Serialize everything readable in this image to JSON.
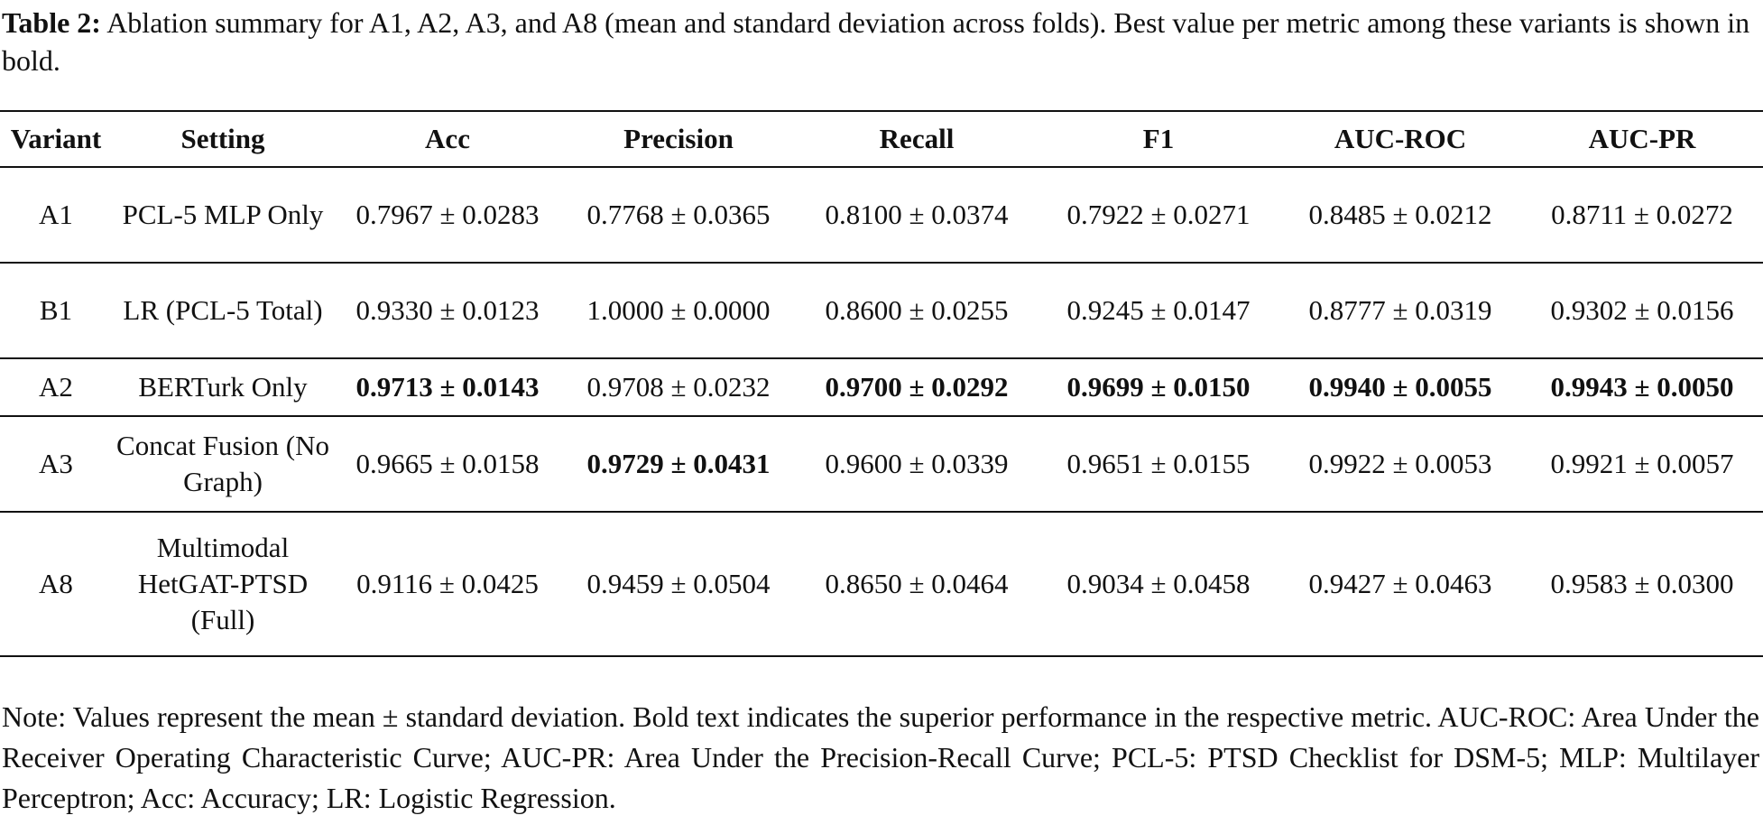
{
  "caption": {
    "label": "Table 2:",
    "text": "Ablation summary for A1, A2, A3, and A8 (mean and standard deviation across folds). Best value per metric among these variants is shown in bold."
  },
  "table": {
    "headers": [
      "Variant",
      "Setting",
      "Acc",
      "Precision",
      "Recall",
      "F1",
      "AUC-ROC",
      "AUC-PR"
    ],
    "rows": [
      {
        "variant": "A1",
        "setting": "PCL-5 MLP Only",
        "values": [
          "0.7967 ± 0.0283",
          "0.7768 ± 0.0365",
          "0.8100 ± 0.0374",
          "0.7922 ± 0.0271",
          "0.8485 ± 0.0212",
          "0.8711 ± 0.0272"
        ],
        "bold": [
          false,
          false,
          false,
          false,
          false,
          false
        ]
      },
      {
        "variant": "B1",
        "setting": "LR (PCL-5 Total)",
        "values": [
          "0.9330 ± 0.0123",
          "1.0000 ± 0.0000",
          "0.8600 ± 0.0255",
          "0.9245 ± 0.0147",
          "0.8777 ± 0.0319",
          "0.9302 ± 0.0156"
        ],
        "bold": [
          false,
          false,
          false,
          false,
          false,
          false
        ]
      },
      {
        "variant": "A2",
        "setting": "BERTurk Only",
        "values": [
          "0.9713 ± 0.0143",
          "0.9708 ± 0.0232",
          "0.9700 ± 0.0292",
          "0.9699 ± 0.0150",
          "0.9940 ± 0.0055",
          "0.9943 ± 0.0050"
        ],
        "bold": [
          true,
          false,
          true,
          true,
          true,
          true
        ]
      },
      {
        "variant": "A3",
        "setting": "Concat Fusion (No Graph)",
        "values": [
          "0.9665 ± 0.0158",
          "0.9729 ± 0.0431",
          "0.9600 ± 0.0339",
          "0.9651 ± 0.0155",
          "0.9922 ± 0.0053",
          "0.9921 ± 0.0057"
        ],
        "bold": [
          false,
          true,
          false,
          false,
          false,
          false
        ]
      },
      {
        "variant": "A8",
        "setting": "Multimodal HetGAT-PTSD (Full)",
        "values": [
          "0.9116 ± 0.0425",
          "0.9459 ± 0.0504",
          "0.8650 ± 0.0464",
          "0.9034 ± 0.0458",
          "0.9427 ± 0.0463",
          "0.9583 ± 0.0300"
        ],
        "bold": [
          false,
          false,
          false,
          false,
          false,
          false
        ]
      }
    ]
  },
  "note": "Note: Values represent the mean ± standard deviation. Bold text indicates the superior performance in the respective metric. AUC-ROC: Area Under the Receiver Operating Characteristic Curve; AUC-PR: Area Under the Precision-Recall Curve; PCL-5: PTSD Checklist for DSM-5; MLP: Multilayer Perceptron; Acc: Accuracy; LR: Logistic Regression."
}
